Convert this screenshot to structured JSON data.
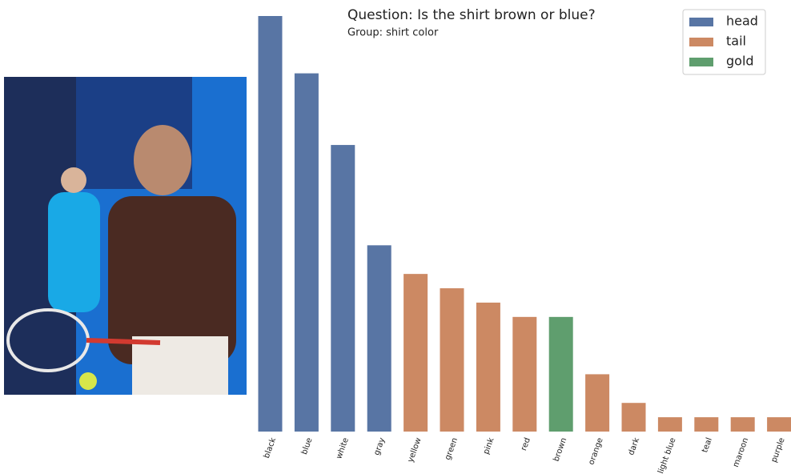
{
  "chart_data": {
    "type": "bar",
    "title": "Question: Is the shirt brown or blue?",
    "subtitle": "Group: shirt color",
    "categories": [
      "black",
      "blue",
      "white",
      "gray",
      "yellow",
      "green",
      "pink",
      "red",
      "brown",
      "orange",
      "dark",
      "light blue",
      "teal",
      "maroon",
      "purple"
    ],
    "series": [
      {
        "name": "head",
        "color": "#5875a4",
        "values": [
          29,
          25,
          20,
          13,
          null,
          null,
          null,
          null,
          null,
          null,
          null,
          null,
          null,
          null,
          null
        ]
      },
      {
        "name": "tail",
        "color": "#cc8963",
        "values": [
          null,
          null,
          null,
          null,
          11,
          10,
          9,
          8,
          null,
          4,
          2,
          1,
          1,
          1,
          1
        ]
      },
      {
        "name": "gold",
        "color": "#5f9e6e",
        "values": [
          null,
          null,
          null,
          null,
          null,
          null,
          null,
          null,
          8,
          null,
          null,
          null,
          null,
          null,
          null
        ]
      }
    ],
    "legend": "upper right"
  }
}
